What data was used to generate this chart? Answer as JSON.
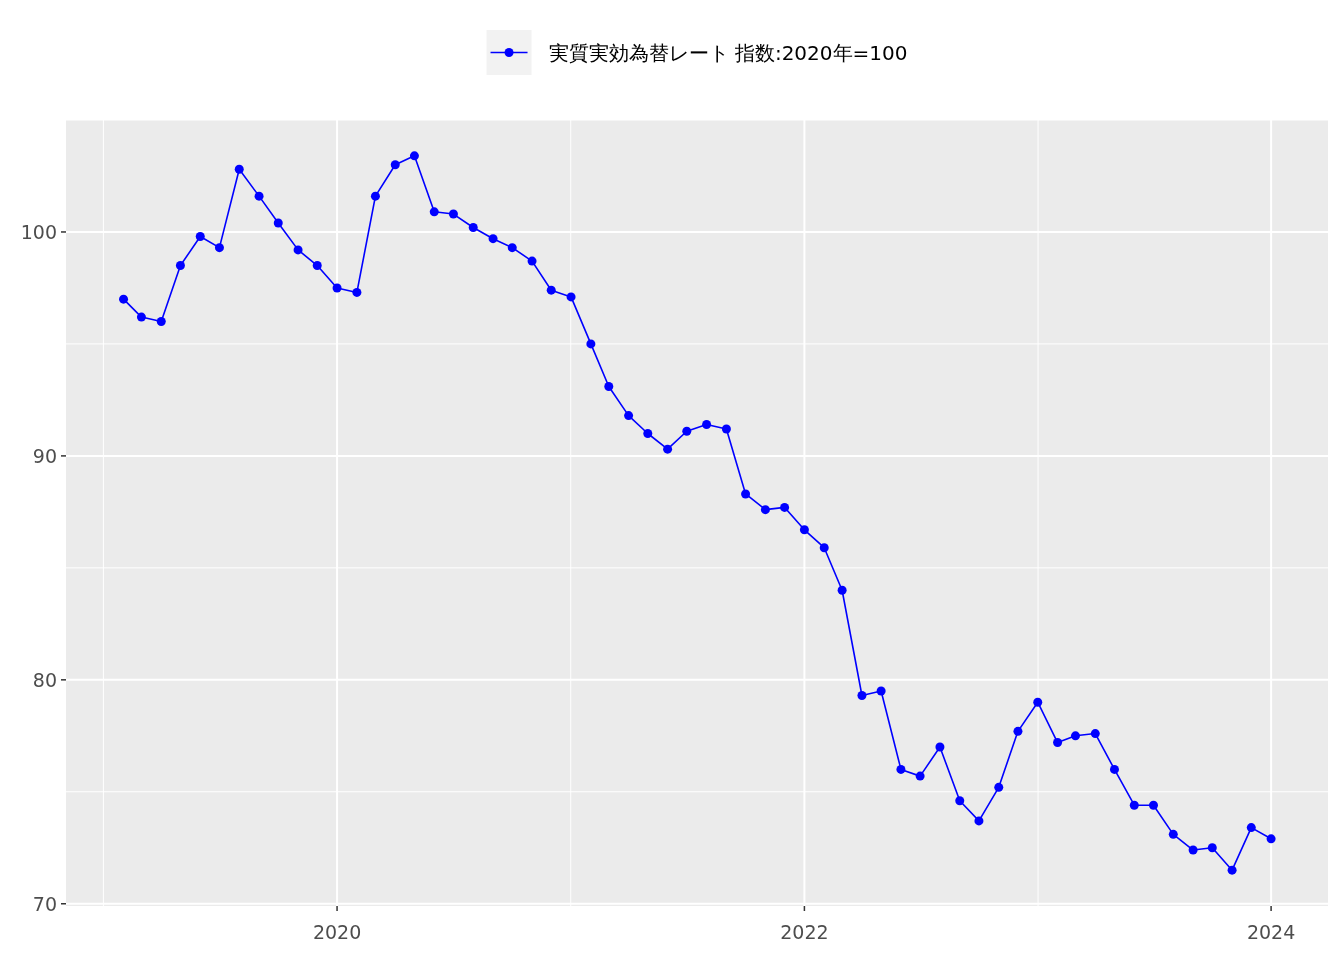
{
  "chart_data": {
    "type": "line",
    "x": [
      "2019-02",
      "2019-03",
      "2019-04",
      "2019-05",
      "2019-06",
      "2019-07",
      "2019-08",
      "2019-09",
      "2019-10",
      "2019-11",
      "2019-12",
      "2020-01",
      "2020-02",
      "2020-03",
      "2020-04",
      "2020-05",
      "2020-06",
      "2020-07",
      "2020-08",
      "2020-09",
      "2020-10",
      "2020-11",
      "2020-12",
      "2021-01",
      "2021-02",
      "2021-03",
      "2021-04",
      "2021-05",
      "2021-06",
      "2021-07",
      "2021-08",
      "2021-09",
      "2021-10",
      "2021-11",
      "2021-12",
      "2022-01",
      "2022-02",
      "2022-03",
      "2022-04",
      "2022-05",
      "2022-06",
      "2022-07",
      "2022-08",
      "2022-09",
      "2022-10",
      "2022-11",
      "2022-12",
      "2023-01",
      "2023-02",
      "2023-03",
      "2023-04",
      "2023-05",
      "2023-06",
      "2023-07",
      "2023-08",
      "2023-09",
      "2023-10",
      "2023-11",
      "2023-12",
      "2024-01"
    ],
    "series": [
      {
        "name": "実質実効為替レート 指数:2020年=100",
        "color": "#0000ff",
        "values": [
          97.0,
          96.2,
          96.0,
          98.5,
          99.8,
          99.3,
          102.8,
          101.6,
          100.4,
          99.2,
          98.5,
          97.5,
          97.3,
          101.6,
          103.0,
          103.4,
          100.9,
          100.8,
          100.2,
          99.7,
          99.3,
          98.7,
          97.4,
          97.1,
          95.0,
          93.1,
          91.8,
          91.0,
          90.3,
          91.1,
          91.4,
          91.2,
          88.3,
          87.6,
          87.7,
          86.7,
          85.9,
          84.0,
          79.3,
          79.5,
          76.0,
          75.7,
          77.0,
          74.6,
          73.7,
          75.2,
          77.7,
          79.0,
          77.2,
          77.5,
          77.6,
          76.0,
          74.4,
          74.4,
          73.1,
          72.4,
          72.5,
          71.5,
          73.4,
          72.9
        ]
      }
    ],
    "xlim": [
      "2018-11-03",
      "2024-03-30"
    ],
    "ylim": [
      69.9,
      105.0
    ],
    "xticks": [
      "2020",
      "2022",
      "2024"
    ],
    "yticks": [
      70,
      80,
      90,
      100
    ],
    "grid": true,
    "legend": "top",
    "marker": "circle",
    "line_style": "solid"
  }
}
